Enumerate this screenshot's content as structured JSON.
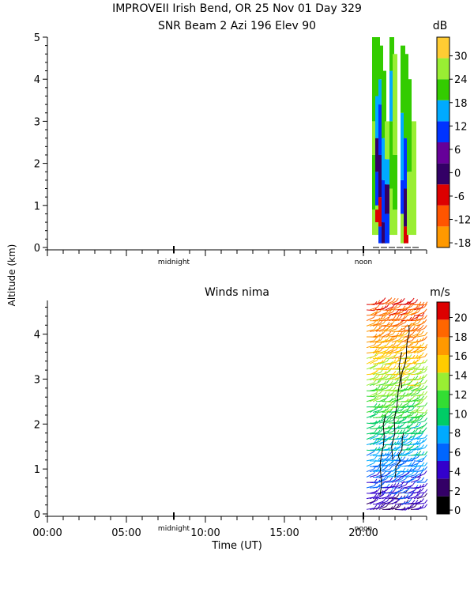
{
  "header": {
    "line1": "IMPROVEII  Irish Bend, OR  25 Nov 01 Day 329",
    "line2": "SNR Beam 2 Azi 196 Elev 90"
  },
  "shared": {
    "ylabel": "Altitude (km)",
    "xlabel": "Time (UT)",
    "markers": [
      "midnight",
      "noon"
    ]
  },
  "chart_data": [
    {
      "type": "heatmap",
      "title": "SNR Beam 2 Azi 196 Elev 90",
      "ylabel": "Altitude (km)",
      "ylim": [
        0,
        5
      ],
      "yticks": [
        "0",
        "1",
        "2",
        "3",
        "4",
        "5"
      ],
      "xlim": [
        0,
        24
      ],
      "colorbar": {
        "unit": "dB",
        "labels": [
          "30",
          "24",
          "18",
          "12",
          "6",
          "0",
          "-6",
          "-12",
          "-18"
        ],
        "colors": [
          "#ff9900",
          "#ff5500",
          "#dd0000",
          "#330066",
          "#660099",
          "#0033ff",
          "#00aaff",
          "#33cc00",
          "#99ee33",
          "#ffcc33"
        ]
      },
      "data_columns": [
        {
          "x": 20.7,
          "from": 0.3,
          "to": 5.0,
          "cells": [
            [
              "#99ee33",
              0.3,
              0.9
            ],
            [
              "#33cc00",
              0.9,
              2.2
            ],
            [
              "#99ee33",
              2.2,
              3.0
            ],
            [
              "#33cc00",
              3.0,
              5.0
            ]
          ]
        },
        {
          "x": 20.9,
          "from": 0.3,
          "to": 5.0,
          "cells": [
            [
              "#99ee33",
              0.3,
              1.0
            ],
            [
              "#dd0000",
              0.6,
              0.9
            ],
            [
              "#0033ff",
              1.0,
              1.8
            ],
            [
              "#330066",
              1.8,
              2.6
            ],
            [
              "#00aaff",
              2.6,
              3.6
            ],
            [
              "#33cc00",
              3.6,
              5.0
            ]
          ]
        },
        {
          "x": 21.1,
          "from": 0.1,
          "to": 4.8,
          "cells": [
            [
              "#0033ff",
              0.1,
              0.5
            ],
            [
              "#dd0000",
              0.5,
              1.2
            ],
            [
              "#330066",
              1.2,
              2.2
            ],
            [
              "#0033ff",
              2.2,
              3.4
            ],
            [
              "#00aaff",
              3.4,
              4.0
            ],
            [
              "#33cc00",
              4.0,
              4.8
            ]
          ]
        },
        {
          "x": 21.3,
          "from": 0.1,
          "to": 4.2,
          "cells": [
            [
              "#330066",
              0.1,
              0.6
            ],
            [
              "#0033ff",
              0.6,
              1.6
            ],
            [
              "#00aaff",
              1.6,
              2.6
            ],
            [
              "#33cc00",
              2.6,
              4.2
            ]
          ]
        },
        {
          "x": 21.5,
          "from": 0.1,
          "to": 3.0,
          "cells": [
            [
              "#0033ff",
              0.1,
              0.8
            ],
            [
              "#330066",
              0.8,
              1.5
            ],
            [
              "#00aaff",
              1.5,
              2.1
            ],
            [
              "#99ee33",
              2.1,
              3.0
            ]
          ]
        },
        {
          "x": 21.8,
          "from": 0.3,
          "to": 5.0,
          "cells": [
            [
              "#99ee33",
              0.3,
              1.4
            ],
            [
              "#33cc00",
              1.4,
              3.0
            ],
            [
              "#00aaff",
              3.0,
              4.2
            ],
            [
              "#33cc00",
              4.2,
              5.0
            ]
          ]
        },
        {
          "x": 22.0,
          "from": 0.3,
          "to": 4.6,
          "cells": [
            [
              "#99ee33",
              0.3,
              0.9
            ],
            [
              "#33cc00",
              0.9,
              2.2
            ],
            [
              "#99ee33",
              2.2,
              4.6
            ]
          ]
        },
        {
          "x": 22.5,
          "from": 0.1,
          "to": 4.8,
          "cells": [
            [
              "#99ee33",
              0.1,
              0.8
            ],
            [
              "#0033ff",
              0.8,
              1.6
            ],
            [
              "#00aaff",
              1.6,
              3.2
            ],
            [
              "#33cc00",
              3.2,
              4.8
            ]
          ]
        },
        {
          "x": 22.7,
          "from": 0.1,
          "to": 4.6,
          "cells": [
            [
              "#dd0000",
              0.1,
              0.5
            ],
            [
              "#330066",
              0.5,
              1.4
            ],
            [
              "#0033ff",
              1.4,
              2.6
            ],
            [
              "#33cc00",
              2.6,
              4.6
            ]
          ]
        },
        {
          "x": 22.9,
          "from": 0.3,
          "to": 4.0,
          "cells": [
            [
              "#99ee33",
              0.3,
              1.8
            ],
            [
              "#33cc00",
              1.8,
              4.0
            ]
          ]
        },
        {
          "x": 23.2,
          "from": 0.3,
          "to": 3.0,
          "cells": [
            [
              "#99ee33",
              0.3,
              3.0
            ]
          ]
        }
      ]
    },
    {
      "type": "heatmap",
      "title": "Winds nima",
      "ylabel": "Altitude (km)",
      "xlabel": "Time (UT)",
      "ylim": [
        0,
        4.75
      ],
      "yticks": [
        "0",
        "1",
        "2",
        "3",
        "4"
      ],
      "xlim": [
        0,
        24
      ],
      "xticks": [
        "00:00",
        "05:00",
        "10:00",
        "15:00",
        "20:00"
      ],
      "colorbar": {
        "unit": "m/s",
        "labels": [
          "20",
          "18",
          "16",
          "14",
          "12",
          "10",
          "8",
          "6",
          "4",
          "2",
          "0"
        ],
        "colors": [
          "#000000",
          "#330066",
          "#3300cc",
          "#0066ff",
          "#00aaff",
          "#00cc66",
          "#33dd33",
          "#99ee33",
          "#ffcc00",
          "#ff9900",
          "#ff6600",
          "#dd0000"
        ]
      },
      "barb_time_range": [
        20.0,
        23.4
      ],
      "barb_alt_range": [
        0.0,
        4.7
      ]
    }
  ]
}
